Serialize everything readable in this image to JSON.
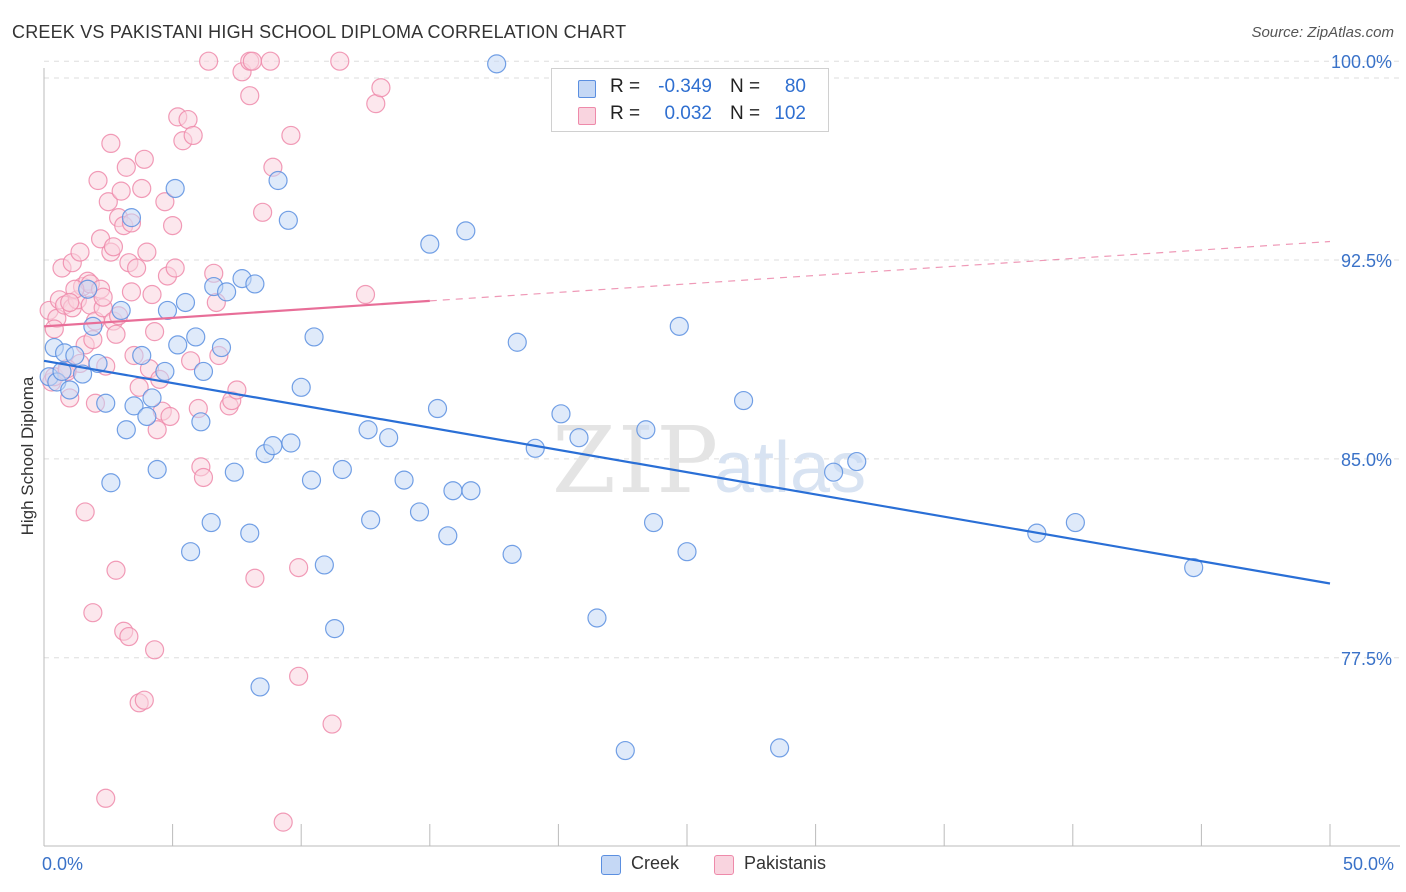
{
  "title": "CREEK VS PAKISTANI HIGH SCHOOL DIPLOMA CORRELATION CHART",
  "source": "Source: ZipAtlas.com",
  "watermark": "ZIPatlas",
  "colors": {
    "creek": "#5b8fe0",
    "creek_fill": "#c5d8f5",
    "pakistani": "#ee8aaa",
    "pakistani_fill": "#f9d4df",
    "creek_line": "#2a6fd6",
    "pakistani_line": "#e86e98",
    "axis_text": "#3a72c8",
    "grid": "#dddddd"
  },
  "legend": {
    "rows": [
      {
        "series": "Creek",
        "r_label": "R =",
        "r_value": "-0.349",
        "n_label": "N =",
        "n_value": "80"
      },
      {
        "series": "Pakistanis",
        "r_label": "R =",
        "r_value": "0.032",
        "n_label": "N =",
        "n_value": "102"
      }
    ]
  },
  "chart_data": {
    "type": "scatter",
    "title": "CREEK VS PAKISTANI HIGH SCHOOL DIPLOMA CORRELATION CHART",
    "xlabel": "",
    "ylabel": "High School Diploma",
    "xlim": [
      0,
      50
    ],
    "ylim": [
      70.4,
      100.8
    ],
    "x_tick_labels": [
      "0.0%",
      "50.0%"
    ],
    "y_ticks": [
      77.5,
      85.0,
      92.5,
      100.0
    ],
    "y_tick_labels": [
      "77.5%",
      "85.0%",
      "92.5%",
      "100.0%"
    ],
    "grid": true,
    "legend_position": "bottom-center",
    "series": [
      {
        "name": "Creek",
        "r": -0.349,
        "n": 80,
        "trend": {
          "x": [
            0,
            50
          ],
          "y": [
            88.7,
            80.3
          ],
          "dashed_from": null
        },
        "points": [
          [
            0.2,
            88.1
          ],
          [
            0.4,
            89.2
          ],
          [
            0.5,
            87.9
          ],
          [
            0.7,
            88.3
          ],
          [
            0.8,
            89.0
          ],
          [
            1.0,
            87.6
          ],
          [
            1.2,
            88.9
          ],
          [
            1.5,
            88.2
          ],
          [
            1.7,
            91.4
          ],
          [
            1.9,
            90.0
          ],
          [
            2.1,
            88.6
          ],
          [
            2.4,
            87.1
          ],
          [
            2.6,
            84.1
          ],
          [
            3.0,
            90.6
          ],
          [
            3.2,
            86.1
          ],
          [
            3.4,
            94.1
          ],
          [
            3.5,
            87.0
          ],
          [
            3.8,
            88.9
          ],
          [
            4.0,
            86.6
          ],
          [
            4.2,
            87.3
          ],
          [
            4.4,
            84.6
          ],
          [
            4.7,
            88.3
          ],
          [
            4.8,
            90.6
          ],
          [
            5.1,
            95.2
          ],
          [
            5.2,
            89.3
          ],
          [
            5.5,
            90.9
          ],
          [
            5.7,
            81.5
          ],
          [
            5.9,
            89.6
          ],
          [
            6.1,
            86.4
          ],
          [
            6.2,
            88.3
          ],
          [
            6.5,
            82.6
          ],
          [
            6.6,
            91.5
          ],
          [
            6.9,
            89.2
          ],
          [
            7.1,
            91.3
          ],
          [
            7.4,
            84.5
          ],
          [
            7.7,
            91.8
          ],
          [
            8.0,
            82.2
          ],
          [
            8.2,
            91.6
          ],
          [
            8.4,
            76.4
          ],
          [
            8.6,
            85.2
          ],
          [
            8.9,
            85.5
          ],
          [
            9.1,
            95.5
          ],
          [
            9.5,
            94.0
          ],
          [
            9.6,
            85.6
          ],
          [
            10.0,
            87.7
          ],
          [
            10.4,
            84.2
          ],
          [
            10.5,
            89.6
          ],
          [
            10.9,
            81.0
          ],
          [
            11.3,
            78.6
          ],
          [
            11.6,
            84.6
          ],
          [
            12.6,
            86.1
          ],
          [
            12.7,
            82.7
          ],
          [
            13.4,
            85.8
          ],
          [
            14.0,
            84.2
          ],
          [
            14.6,
            83.0
          ],
          [
            15.0,
            93.1
          ],
          [
            15.3,
            86.9
          ],
          [
            15.7,
            82.1
          ],
          [
            15.9,
            83.8
          ],
          [
            16.4,
            93.6
          ],
          [
            16.6,
            83.8
          ],
          [
            17.6,
            99.9
          ],
          [
            18.2,
            81.4
          ],
          [
            18.4,
            89.4
          ],
          [
            19.1,
            85.4
          ],
          [
            20.1,
            86.7
          ],
          [
            20.8,
            85.8
          ],
          [
            21.5,
            79.0
          ],
          [
            22.6,
            74.0
          ],
          [
            23.4,
            86.1
          ],
          [
            23.7,
            82.6
          ],
          [
            24.7,
            90.0
          ],
          [
            25.0,
            81.5
          ],
          [
            27.2,
            87.2
          ],
          [
            28.6,
            74.1
          ],
          [
            30.7,
            84.5
          ],
          [
            31.6,
            84.9
          ],
          [
            38.6,
            82.2
          ],
          [
            40.1,
            82.6
          ],
          [
            44.7,
            80.9
          ]
        ]
      },
      {
        "name": "Pakistanis",
        "r": 0.032,
        "n": 102,
        "trend": {
          "x": [
            0,
            50
          ],
          "y": [
            90.0,
            93.2
          ],
          "dashed_from": 15.0
        },
        "points": [
          [
            0.2,
            90.6
          ],
          [
            0.3,
            87.9
          ],
          [
            0.4,
            88.1
          ],
          [
            0.5,
            90.3
          ],
          [
            0.6,
            91.0
          ],
          [
            0.7,
            92.2
          ],
          [
            0.8,
            90.8
          ],
          [
            0.9,
            88.3
          ],
          [
            1.0,
            87.3
          ],
          [
            1.1,
            92.4
          ],
          [
            1.1,
            90.7
          ],
          [
            1.3,
            91.0
          ],
          [
            1.4,
            92.8
          ],
          [
            1.4,
            88.6
          ],
          [
            1.5,
            91.5
          ],
          [
            1.6,
            89.3
          ],
          [
            1.6,
            83.0
          ],
          [
            1.7,
            91.7
          ],
          [
            1.8,
            91.6
          ],
          [
            1.8,
            90.8
          ],
          [
            1.9,
            89.5
          ],
          [
            2.0,
            90.2
          ],
          [
            2.0,
            87.1
          ],
          [
            2.1,
            95.5
          ],
          [
            2.2,
            93.3
          ],
          [
            2.2,
            91.4
          ],
          [
            2.3,
            90.7
          ],
          [
            2.4,
            88.5
          ],
          [
            2.5,
            94.7
          ],
          [
            2.6,
            96.9
          ],
          [
            2.6,
            92.8
          ],
          [
            2.7,
            93.0
          ],
          [
            2.7,
            90.2
          ],
          [
            2.8,
            89.7
          ],
          [
            2.9,
            94.1
          ],
          [
            3.0,
            95.1
          ],
          [
            3.1,
            93.8
          ],
          [
            3.2,
            96.0
          ],
          [
            3.3,
            92.4
          ],
          [
            3.4,
            91.3
          ],
          [
            3.5,
            88.9
          ],
          [
            3.6,
            92.2
          ],
          [
            3.7,
            87.7
          ],
          [
            3.8,
            95.2
          ],
          [
            3.9,
            96.3
          ],
          [
            4.0,
            92.8
          ],
          [
            4.1,
            88.4
          ],
          [
            4.2,
            91.2
          ],
          [
            4.3,
            89.8
          ],
          [
            4.4,
            86.1
          ],
          [
            4.5,
            88.0
          ],
          [
            4.6,
            86.8
          ],
          [
            4.7,
            94.7
          ],
          [
            4.8,
            91.9
          ],
          [
            5.0,
            93.8
          ],
          [
            5.1,
            92.2
          ],
          [
            5.2,
            97.9
          ],
          [
            5.4,
            97.0
          ],
          [
            5.6,
            97.8
          ],
          [
            5.7,
            88.7
          ],
          [
            5.8,
            97.2
          ],
          [
            6.0,
            86.9
          ],
          [
            6.1,
            84.7
          ],
          [
            6.2,
            84.3
          ],
          [
            6.4,
            100.0
          ],
          [
            6.6,
            92.0
          ],
          [
            6.7,
            90.9
          ],
          [
            7.2,
            87.0
          ],
          [
            7.3,
            87.2
          ],
          [
            7.7,
            99.6
          ],
          [
            8.0,
            98.7
          ],
          [
            8.0,
            100.0
          ],
          [
            8.1,
            100.0
          ],
          [
            8.2,
            80.5
          ],
          [
            8.5,
            94.3
          ],
          [
            8.8,
            100.0
          ],
          [
            8.9,
            96.0
          ],
          [
            9.3,
            71.3
          ],
          [
            9.6,
            97.2
          ],
          [
            9.9,
            76.8
          ],
          [
            9.9,
            80.9
          ],
          [
            11.2,
            75.0
          ],
          [
            11.5,
            100.0
          ],
          [
            12.5,
            91.2
          ],
          [
            12.9,
            98.4
          ],
          [
            13.1,
            99.0
          ],
          [
            2.8,
            80.8
          ],
          [
            1.9,
            79.2
          ],
          [
            3.1,
            78.5
          ],
          [
            3.3,
            78.3
          ],
          [
            3.7,
            75.8
          ],
          [
            3.9,
            75.9
          ],
          [
            4.3,
            77.8
          ],
          [
            2.4,
            72.2
          ],
          [
            0.4,
            89.9
          ],
          [
            0.9,
            88.4
          ],
          [
            1.2,
            91.4
          ],
          [
            2.3,
            91.1
          ],
          [
            3.4,
            93.9
          ],
          [
            4.9,
            86.6
          ],
          [
            6.8,
            88.9
          ],
          [
            7.5,
            87.6
          ],
          [
            1.0,
            90.9
          ],
          [
            2.9,
            90.4
          ]
        ]
      }
    ]
  },
  "bottom_legend": [
    {
      "label": "Creek"
    },
    {
      "label": "Pakistanis"
    }
  ]
}
